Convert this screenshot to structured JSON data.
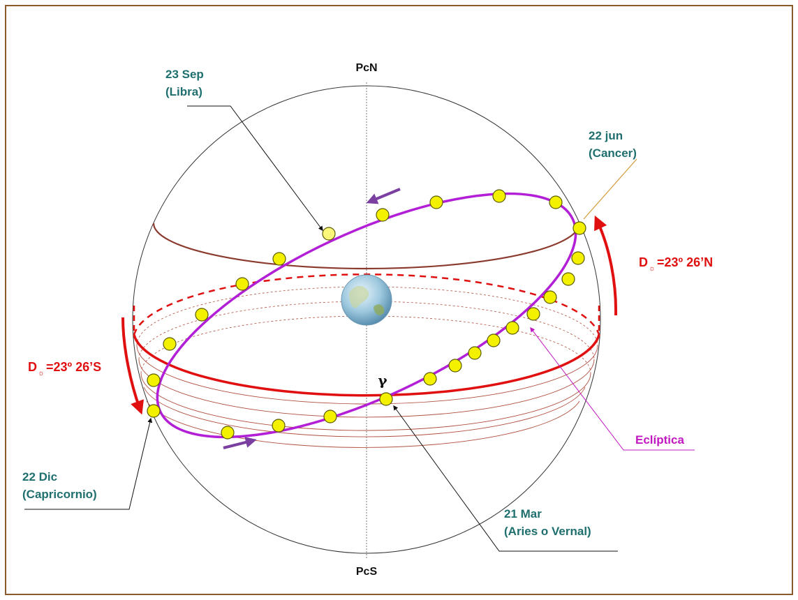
{
  "labels": {
    "pole_north": "PcN",
    "pole_south": "PcS",
    "sep_line1": "23 Sep",
    "sep_line2": "(Libra)",
    "jun_line1": "22 jun",
    "jun_line2": "(Cancer)",
    "dic_line1": "22 Dic",
    "dic_line2": "(Capricornio)",
    "mar_line1": "21 Mar",
    "mar_line2": "(Aries o Vernal)",
    "decl_north": "=23º 26’N",
    "decl_south": "=23º 26’S",
    "decl_symbol": "D",
    "sun_symbol": "☼",
    "ecliptic": "Eclíptica",
    "gamma": "γ"
  },
  "colors": {
    "frame": "#8a5a2b",
    "equator": "#e01010",
    "ecliptic": "#b21fd6",
    "tropic": "#8b3a2e",
    "arrow": "#7a3fa0",
    "teal_text": "#1f6f6f"
  },
  "icons": {
    "earth": "earth-globe-icon",
    "sun_marker": "sun-circle-icon"
  }
}
